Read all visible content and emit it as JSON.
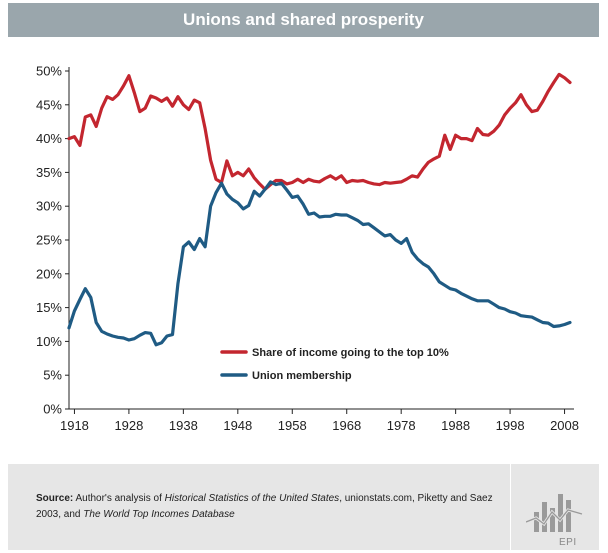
{
  "header": {
    "title": "Unions and shared prosperity"
  },
  "colors": {
    "income": "#c3262f",
    "union": "#1f5b84",
    "header_bg": "#9aa6ac",
    "footer_bg": "#e6e6e6"
  },
  "footer": {
    "source_label": "Source:",
    "source_text_1": "Author's analysis of",
    "source_italic_1": "Historical Statistics of the United States",
    "source_text_2": ", unionstats.com, Piketty and Saez 2003, and",
    "source_italic_2": "The World Top Incomes Database",
    "logo_text": "EPI"
  },
  "chart_data": {
    "type": "line",
    "title": "Unions and shared prosperity",
    "xlabel": "",
    "ylabel": "",
    "xlim": [
      1917,
      2009
    ],
    "ylim": [
      0,
      50
    ],
    "x_ticks": [
      1918,
      1928,
      1938,
      1948,
      1958,
      1968,
      1978,
      1988,
      1998,
      2008
    ],
    "y_ticks": [
      "0%",
      "5%",
      "10%",
      "15%",
      "20%",
      "25%",
      "30%",
      "35%",
      "40%",
      "45%",
      "50%"
    ],
    "legend": [
      "Share of income going to the top 10%",
      "Union membership"
    ],
    "series": [
      {
        "name": "Share of income going to the top 10%",
        "color": "#c3262f",
        "points": [
          [
            1917,
            40
          ],
          [
            1918,
            40.3
          ],
          [
            1919,
            39
          ],
          [
            1920,
            43.2
          ],
          [
            1921,
            43.5
          ],
          [
            1922,
            41.8
          ],
          [
            1923,
            44.5
          ],
          [
            1924,
            46.2
          ],
          [
            1925,
            45.8
          ],
          [
            1926,
            46.5
          ],
          [
            1927,
            47.8
          ],
          [
            1928,
            49.3
          ],
          [
            1929,
            46.8
          ],
          [
            1930,
            44
          ],
          [
            1931,
            44.5
          ],
          [
            1932,
            46.3
          ],
          [
            1933,
            46
          ],
          [
            1934,
            45.5
          ],
          [
            1935,
            46
          ],
          [
            1936,
            44.8
          ],
          [
            1937,
            46.2
          ],
          [
            1938,
            45
          ],
          [
            1939,
            44.3
          ],
          [
            1940,
            45.7
          ],
          [
            1941,
            45.3
          ],
          [
            1942,
            41.5
          ],
          [
            1943,
            36.8
          ],
          [
            1944,
            34
          ],
          [
            1945,
            33.5
          ],
          [
            1946,
            36.7
          ],
          [
            1947,
            34.5
          ],
          [
            1948,
            35
          ],
          [
            1949,
            34.5
          ],
          [
            1950,
            35.5
          ],
          [
            1951,
            34.2
          ],
          [
            1952,
            33.3
          ],
          [
            1953,
            32.5
          ],
          [
            1954,
            33.2
          ],
          [
            1955,
            33.8
          ],
          [
            1956,
            33.8
          ],
          [
            1957,
            33.3
          ],
          [
            1958,
            33.5
          ],
          [
            1959,
            34
          ],
          [
            1960,
            33.5
          ],
          [
            1961,
            34
          ],
          [
            1962,
            33.7
          ],
          [
            1963,
            33.6
          ],
          [
            1964,
            34.1
          ],
          [
            1965,
            34.5
          ],
          [
            1966,
            34
          ],
          [
            1967,
            34.5
          ],
          [
            1968,
            33.5
          ],
          [
            1969,
            33.8
          ],
          [
            1970,
            33.7
          ],
          [
            1971,
            33.8
          ],
          [
            1972,
            33.5
          ],
          [
            1973,
            33.3
          ],
          [
            1974,
            33.2
          ],
          [
            1975,
            33.5
          ],
          [
            1976,
            33.4
          ],
          [
            1977,
            33.5
          ],
          [
            1978,
            33.6
          ],
          [
            1979,
            34
          ],
          [
            1980,
            34.5
          ],
          [
            1981,
            34.3
          ],
          [
            1982,
            35.5
          ],
          [
            1983,
            36.5
          ],
          [
            1984,
            37
          ],
          [
            1985,
            37.4
          ],
          [
            1986,
            40.5
          ],
          [
            1987,
            38.4
          ],
          [
            1988,
            40.5
          ],
          [
            1989,
            40
          ],
          [
            1990,
            40
          ],
          [
            1991,
            39.7
          ],
          [
            1992,
            41.5
          ],
          [
            1993,
            40.6
          ],
          [
            1994,
            40.5
          ],
          [
            1995,
            41.1
          ],
          [
            1996,
            42
          ],
          [
            1997,
            43.5
          ],
          [
            1998,
            44.5
          ],
          [
            1999,
            45.3
          ],
          [
            2000,
            46.5
          ],
          [
            2001,
            45
          ],
          [
            2002,
            44
          ],
          [
            2003,
            44.2
          ],
          [
            2004,
            45.5
          ],
          [
            2005,
            47
          ],
          [
            2006,
            48.3
          ],
          [
            2007,
            49.5
          ],
          [
            2008,
            49
          ],
          [
            2009,
            48.3
          ]
        ]
      },
      {
        "name": "Union membership",
        "color": "#1f5b84",
        "points": [
          [
            1917,
            12
          ],
          [
            1918,
            14.5
          ],
          [
            1919,
            16.2
          ],
          [
            1920,
            17.8
          ],
          [
            1921,
            16.5
          ],
          [
            1922,
            12.8
          ],
          [
            1923,
            11.5
          ],
          [
            1924,
            11.1
          ],
          [
            1925,
            10.8
          ],
          [
            1926,
            10.6
          ],
          [
            1927,
            10.5
          ],
          [
            1928,
            10.2
          ],
          [
            1929,
            10.4
          ],
          [
            1930,
            10.9
          ],
          [
            1931,
            11.3
          ],
          [
            1932,
            11.2
          ],
          [
            1933,
            9.5
          ],
          [
            1934,
            9.8
          ],
          [
            1935,
            10.8
          ],
          [
            1936,
            11
          ],
          [
            1937,
            18.5
          ],
          [
            1938,
            24
          ],
          [
            1939,
            24.7
          ],
          [
            1940,
            23.6
          ],
          [
            1941,
            25.2
          ],
          [
            1942,
            24
          ],
          [
            1943,
            30
          ],
          [
            1944,
            32
          ],
          [
            1945,
            33.4
          ],
          [
            1946,
            31.8
          ],
          [
            1947,
            31
          ],
          [
            1948,
            30.5
          ],
          [
            1949,
            29.6
          ],
          [
            1950,
            30.1
          ],
          [
            1951,
            32.2
          ],
          [
            1952,
            31.5
          ],
          [
            1953,
            32.5
          ],
          [
            1954,
            33.6
          ],
          [
            1955,
            33.2
          ],
          [
            1956,
            33.4
          ],
          [
            1957,
            32.4
          ],
          [
            1958,
            31.3
          ],
          [
            1959,
            31.5
          ],
          [
            1960,
            30.3
          ],
          [
            1961,
            28.8
          ],
          [
            1962,
            29
          ],
          [
            1963,
            28.4
          ],
          [
            1964,
            28.5
          ],
          [
            1965,
            28.5
          ],
          [
            1966,
            28.8
          ],
          [
            1967,
            28.7
          ],
          [
            1968,
            28.7
          ],
          [
            1969,
            28.3
          ],
          [
            1970,
            27.9
          ],
          [
            1971,
            27.3
          ],
          [
            1972,
            27.4
          ],
          [
            1973,
            26.8
          ],
          [
            1974,
            26.2
          ],
          [
            1975,
            25.6
          ],
          [
            1976,
            25.8
          ],
          [
            1977,
            25
          ],
          [
            1978,
            24.5
          ],
          [
            1979,
            25.2
          ],
          [
            1980,
            23.2
          ],
          [
            1981,
            22.2
          ],
          [
            1982,
            21.5
          ],
          [
            1983,
            21
          ],
          [
            1984,
            20
          ],
          [
            1985,
            18.8
          ],
          [
            1986,
            18.3
          ],
          [
            1987,
            17.8
          ],
          [
            1988,
            17.6
          ],
          [
            1989,
            17.1
          ],
          [
            1990,
            16.7
          ],
          [
            1991,
            16.3
          ],
          [
            1992,
            16
          ],
          [
            1993,
            16
          ],
          [
            1994,
            16
          ],
          [
            1995,
            15.5
          ],
          [
            1996,
            15
          ],
          [
            1997,
            14.8
          ],
          [
            1998,
            14.4
          ],
          [
            1999,
            14.2
          ],
          [
            2000,
            13.8
          ],
          [
            2001,
            13.7
          ],
          [
            2002,
            13.6
          ],
          [
            2003,
            13.2
          ],
          [
            2004,
            12.8
          ],
          [
            2005,
            12.7
          ],
          [
            2006,
            12.2
          ],
          [
            2007,
            12.3
          ],
          [
            2008,
            12.5
          ],
          [
            2009,
            12.8
          ]
        ]
      }
    ]
  }
}
